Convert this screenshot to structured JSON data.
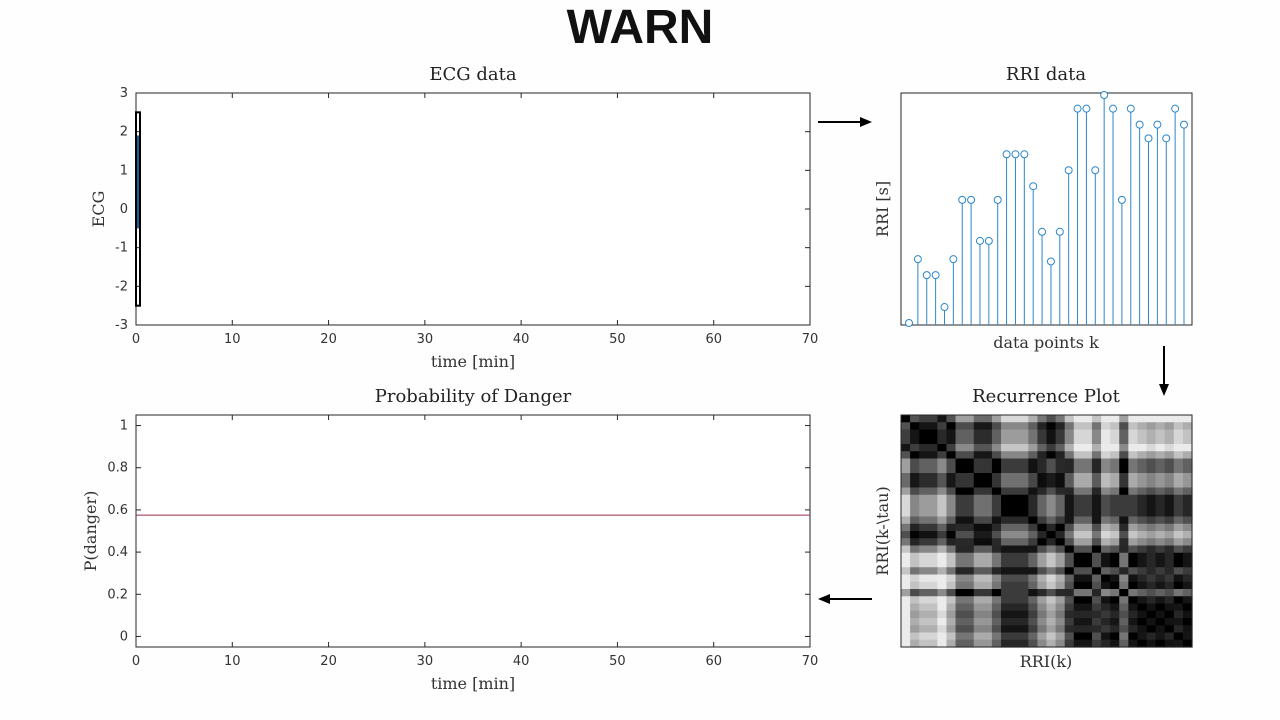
{
  "header": {
    "title": "WARN"
  },
  "chart_data": [
    {
      "id": "ecg",
      "type": "line",
      "title": "ECG data",
      "xlabel": "time [min]",
      "ylabel": "ECG",
      "xlim": [
        0,
        70
      ],
      "ylim": [
        -3,
        3
      ],
      "xticks": [
        0,
        10,
        20,
        30,
        40,
        50,
        60,
        70
      ],
      "yticks": [
        -3,
        -2,
        -1,
        0,
        1,
        2,
        3
      ],
      "window": {
        "x": [
          0,
          0.4
        ],
        "y": [
          -2.5,
          2.5
        ]
      },
      "series": [
        {
          "x": [
            0.1,
            0.15,
            0.2,
            0.25,
            0.3
          ],
          "y": [
            -0.5,
            1.9,
            -0.3,
            1.8,
            -0.5
          ],
          "color": "#1f5f9a"
        }
      ]
    },
    {
      "id": "rri",
      "type": "stem",
      "title": "RRI data",
      "xlabel": "data points k",
      "ylabel": "RRI [s]",
      "values": [
        0.0,
        0.28,
        0.21,
        0.21,
        0.07,
        0.28,
        0.54,
        0.54,
        0.36,
        0.36,
        0.54,
        0.74,
        0.74,
        0.74,
        0.6,
        0.4,
        0.27,
        0.4,
        0.67,
        0.94,
        0.94,
        0.67,
        1.0,
        0.94,
        0.54,
        0.94,
        0.87,
        0.81,
        0.87,
        0.81,
        0.94,
        0.87
      ],
      "color": "#2c87c9"
    },
    {
      "id": "danger",
      "type": "line",
      "title": "Probability of Danger",
      "xlabel": "time [min]",
      "ylabel": "P(danger)",
      "xlim": [
        0,
        70
      ],
      "ylim": [
        -0.05,
        1.05
      ],
      "xticks": [
        0,
        10,
        20,
        30,
        40,
        50,
        60,
        70
      ],
      "yticks": [
        0,
        0.2,
        0.4,
        0.6,
        0.8,
        1
      ],
      "series": [
        {
          "x": [
            0,
            70
          ],
          "y": [
            0.575,
            0.575
          ],
          "color": "#9a2a45"
        }
      ]
    },
    {
      "id": "recurrence",
      "type": "heatmap",
      "title": "Recurrence Plot",
      "xlabel": "RRI(k)",
      "ylabel": "RRI(k-\\tau)",
      "size": 32
    }
  ]
}
